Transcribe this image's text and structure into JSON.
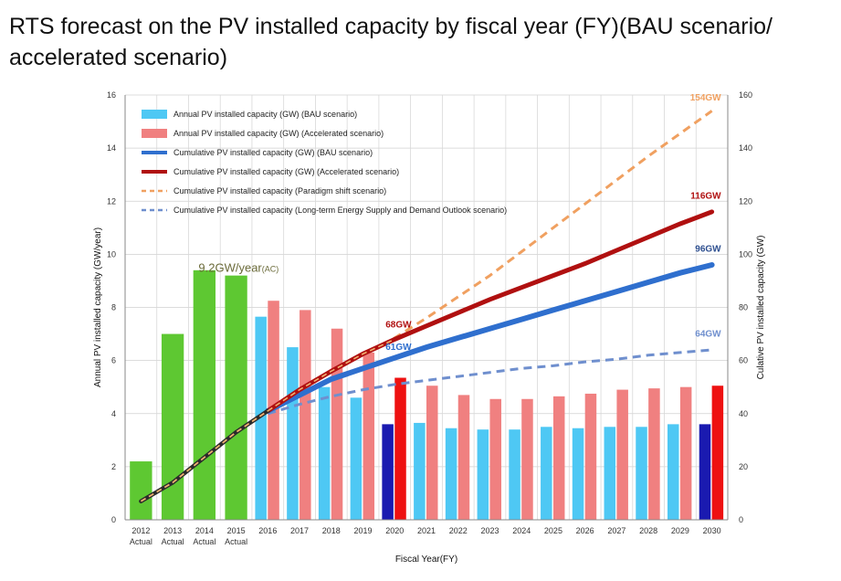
{
  "title": "RTS forecast on the PV installed capacity by fiscal year (FY)(BAU scenario/ accelerated scenario)",
  "chart_data": {
    "type": "bar",
    "xlabel": "Fiscal Year(FY)",
    "ylabel": "Annual PV installed capacity (GW/year)",
    "y2label": "Culative PV installed capacity (GW)",
    "ylim": [
      0,
      16
    ],
    "y2lim": [
      0,
      160
    ],
    "yticks": [
      "0",
      "2",
      "4",
      "6",
      "8",
      "10",
      "12",
      "14",
      "16"
    ],
    "y2ticks": [
      "0",
      "20",
      "40",
      "60",
      "80",
      "100",
      "120",
      "140",
      "160"
    ],
    "categories": [
      "2012",
      "2013",
      "2014",
      "2015",
      "2016",
      "2017",
      "2018",
      "2019",
      "2020",
      "2021",
      "2022",
      "2023",
      "2024",
      "2025",
      "2026",
      "2027",
      "2028",
      "2029",
      "2030"
    ],
    "sublabels": [
      "Actual",
      "Actual",
      "Actual",
      "Actual",
      "",
      "",
      "",
      "",
      "",
      "",
      "",
      "",
      "",
      "",
      "",
      "",
      "",
      "",
      ""
    ],
    "actual_bars": [
      2.2,
      7.0,
      9.4,
      9.2
    ],
    "bau_bars": [
      7.65,
      6.5,
      5.0,
      4.6,
      3.6,
      3.65,
      3.45,
      3.4,
      3.4,
      3.5,
      3.45,
      3.5,
      3.5,
      3.6,
      3.6
    ],
    "accel_bars": [
      8.25,
      7.9,
      7.2,
      6.3,
      5.35,
      5.05,
      4.7,
      4.55,
      4.55,
      4.65,
      4.75,
      4.9,
      4.95,
      5.0,
      5.05
    ],
    "highlight_years": [
      "2020",
      "2030"
    ],
    "colors": {
      "actual": "#5ec832",
      "bau_bar": "#4ec8f4",
      "accel_bar": "#f08080",
      "bau_bar_highlight": "#1a1ab0",
      "accel_bar_highlight": "#ee1111",
      "bau_line": "#2f6fce",
      "accel_line": "#b01010",
      "paradigm_line": "#f0a060",
      "outlook_line": "#6f8fce"
    },
    "series": [
      {
        "name": "Annual PV installed capacity (GW) (BAU scenario)",
        "kind": "bar"
      },
      {
        "name": "Annual PV installed capacity (GW) (Accelerated scenario)",
        "kind": "bar"
      },
      {
        "name": "Cumulative PV installed capacity (GW) (BAU scenario)",
        "kind": "line",
        "x": [
          "2016",
          "2017",
          "2018",
          "2019",
          "2020",
          "2021",
          "2022",
          "2023",
          "2024",
          "2025",
          "2026",
          "2027",
          "2028",
          "2029",
          "2030"
        ],
        "values": [
          41,
          47,
          53,
          57,
          61,
          65,
          68.5,
          72,
          75.5,
          79,
          82.5,
          86,
          89.5,
          93,
          96
        ]
      },
      {
        "name": "Cumulative PV installed capacity (GW) (Accelerated scenario)",
        "kind": "line",
        "x": [
          "2016",
          "2017",
          "2018",
          "2019",
          "2020",
          "2021",
          "2022",
          "2023",
          "2024",
          "2025",
          "2026",
          "2027",
          "2028",
          "2029",
          "2030"
        ],
        "values": [
          41,
          49,
          56,
          62.5,
          68,
          73,
          78,
          83,
          87.5,
          92,
          96.5,
          101.5,
          106.5,
          111.5,
          116
        ]
      },
      {
        "name": "Cumulative PV installed capacity (Paradigm shift scenario)",
        "kind": "line",
        "x": [
          "2012",
          "2013",
          "2014",
          "2015",
          "2016",
          "2017",
          "2018",
          "2019",
          "2020",
          "2021",
          "2022",
          "2023",
          "2024",
          "2025",
          "2026",
          "2027",
          "2028",
          "2029",
          "2030"
        ],
        "values": [
          7,
          14,
          23.5,
          33,
          41,
          49,
          56,
          62.5,
          68.5,
          76,
          84,
          92,
          101,
          110,
          119,
          128,
          137,
          145.5,
          154
        ]
      },
      {
        "name": "Cumulative PV installed capacity (Long-term Energy Supply and Demand Outlook scenario)",
        "kind": "line",
        "x": [
          "2016",
          "2017",
          "2018",
          "2019",
          "2020",
          "2021",
          "2022",
          "2023",
          "2024",
          "2025",
          "2026",
          "2027",
          "2028",
          "2029",
          "2030"
        ],
        "values": [
          40,
          43.5,
          46.5,
          49,
          51,
          52.5,
          54,
          55.5,
          57,
          58,
          59.5,
          60.5,
          62,
          63,
          64
        ]
      }
    ],
    "actual_cumulative": {
      "x": [
        "2012",
        "2013",
        "2014",
        "2015",
        "2016"
      ],
      "values": [
        7,
        14,
        23.5,
        33,
        41
      ]
    },
    "annotations": [
      {
        "text": "9.2GW/year",
        "sub": "(AC)",
        "x": "2014",
        "y": 9.35,
        "axis": "left",
        "color": "#6b6b3a"
      },
      {
        "text": "154GW",
        "x": "2030",
        "y": 158,
        "axis": "right",
        "color": "#f0a060"
      },
      {
        "text": "116GW",
        "x": "2030",
        "y": 121,
        "axis": "right",
        "color": "#b01010"
      },
      {
        "text": "96GW",
        "x": "2030",
        "y": 101,
        "axis": "right",
        "color": "#2f5090"
      },
      {
        "text": "68GW",
        "x": "2020",
        "y": 72.5,
        "axis": "right",
        "color": "#b01010"
      },
      {
        "text": "61GW",
        "x": "2020",
        "y": 64,
        "axis": "right",
        "color": "#2f6fce"
      },
      {
        "text": "64GW",
        "x": "2030",
        "y": 69,
        "axis": "right",
        "color": "#6f8fce"
      }
    ],
    "grid": true,
    "legend_position": "top-left"
  }
}
